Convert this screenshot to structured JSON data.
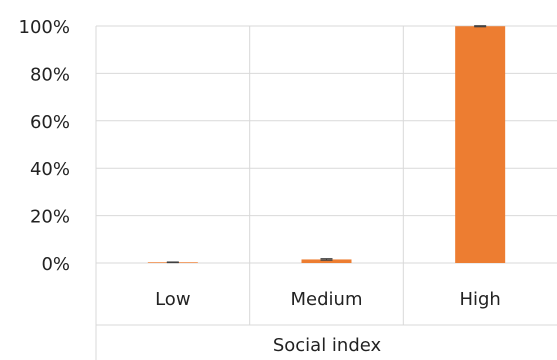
{
  "chart_data": {
    "type": "bar",
    "categories": [
      "Low",
      "Medium",
      "High"
    ],
    "values": [
      0.3,
      1.5,
      99.9
    ],
    "error": [
      0.1,
      0.3,
      0.2
    ],
    "yticks": [
      "0%",
      "20%",
      "40%",
      "60%",
      "80%",
      "100%"
    ],
    "ylim": [
      0,
      100
    ],
    "xlabel": "Social index",
    "ylabel": "",
    "title": "",
    "grid": true,
    "bar_color": "#ED7D31",
    "gridline_color": "#D9D9D9",
    "error_bar_color": "#404040"
  }
}
